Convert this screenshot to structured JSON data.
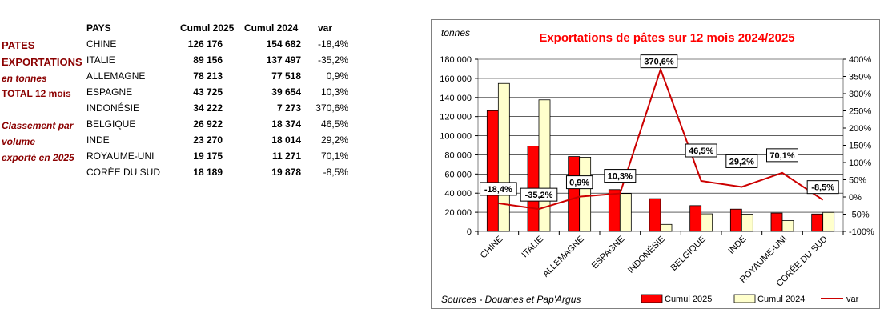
{
  "left_labels": {
    "line1": "PATES",
    "line2": "EXPORTATIONS",
    "line3": "en tonnes",
    "line4": "TOTAL 12  mois",
    "line5": "Classement par",
    "line6": "volume",
    "line7": "exporté en 2025"
  },
  "table": {
    "headers": {
      "country": "PAYS",
      "cumul2025": "Cumul 2025",
      "cumul2024": "Cumul 2024",
      "var": "var"
    },
    "rows": [
      {
        "country": "CHINE",
        "cumul2025": "126 176",
        "cumul2024": "154 682",
        "var": "-18,4%"
      },
      {
        "country": "ITALIE",
        "cumul2025": "89 156",
        "cumul2024": "137 497",
        "var": "-35,2%"
      },
      {
        "country": "ALLEMAGNE",
        "cumul2025": "78 213",
        "cumul2024": "77 518",
        "var": "0,9%"
      },
      {
        "country": "ESPAGNE",
        "cumul2025": "43 725",
        "cumul2024": "39 654",
        "var": "10,3%"
      },
      {
        "country": "INDONÉSIE",
        "cumul2025": "34 222",
        "cumul2024": "7 273",
        "var": "370,6%"
      },
      {
        "country": "BELGIQUE",
        "cumul2025": "26 922",
        "cumul2024": "18 374",
        "var": "46,5%"
      },
      {
        "country": "INDE",
        "cumul2025": "23 270",
        "cumul2024": "18 014",
        "var": "29,2%"
      },
      {
        "country": "ROYAUME-UNI",
        "cumul2025": "19 175",
        "cumul2024": "11 271",
        "var": "70,1%"
      },
      {
        "country": "CORÉE DU SUD",
        "cumul2025": "18 189",
        "cumul2024": "19 878",
        "var": "-8,5%"
      }
    ]
  },
  "chart_data": {
    "type": "bar",
    "title": "Exportations de pâtes sur 12 mois 2024/2025",
    "ylabel": "tonnes",
    "source": "Sources - Douanes et Pap'Argus",
    "categories": [
      "CHINE",
      "ITALIE",
      "ALLEMAGNE",
      "ESPAGNE",
      "INDONÉSIE",
      "BELGIQUE",
      "INDE",
      "ROYAUME-UNI",
      "CORÉE DU SUD"
    ],
    "series": [
      {
        "name": "Cumul 2025",
        "type": "bar",
        "axis": "left",
        "color": "#ff0000",
        "values": [
          126176,
          89156,
          78213,
          43725,
          34222,
          26922,
          23270,
          19175,
          18189
        ]
      },
      {
        "name": "Cumul 2024",
        "type": "bar",
        "axis": "left",
        "color": "#ffffcc",
        "values": [
          154682,
          137497,
          77518,
          39654,
          7273,
          18374,
          18014,
          11271,
          19878
        ]
      },
      {
        "name": "var",
        "type": "line",
        "axis": "right",
        "color": "#cc0000",
        "values": [
          -18.4,
          -35.2,
          0.9,
          10.3,
          370.6,
          46.5,
          29.2,
          70.1,
          -8.5
        ]
      }
    ],
    "var_labels": [
      "-18,4%",
      "-35,2%",
      "0,9%",
      "10,3%",
      "370,6%",
      "46,5%",
      "29,2%",
      "70,1%",
      "-8,5%"
    ],
    "ylim": [
      0,
      180000
    ],
    "yticks": [
      0,
      20000,
      40000,
      60000,
      80000,
      100000,
      120000,
      140000,
      160000,
      180000
    ],
    "ytick_labels": [
      "0",
      "20 000",
      "40 000",
      "60 000",
      "80 000",
      "100 000",
      "120 000",
      "140 000",
      "160 000",
      "180 000"
    ],
    "y2lim": [
      -100,
      400
    ],
    "y2ticks": [
      -100,
      -50,
      0,
      50,
      100,
      150,
      200,
      250,
      300,
      350,
      400
    ],
    "y2tick_labels": [
      "-100%",
      "-50%",
      "0%",
      "50%",
      "100%",
      "150%",
      "200%",
      "250%",
      "300%",
      "350%",
      "400%"
    ],
    "legend_position": "bottom"
  }
}
